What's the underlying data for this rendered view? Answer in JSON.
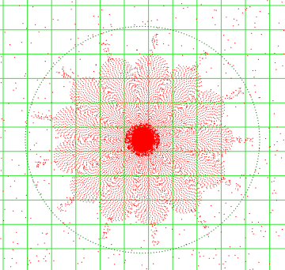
{
  "figure": {
    "background_color": "#ffffff",
    "grid_color": "#2ee82e",
    "point_color": "#ff0000",
    "boundary_dot_color": "#1a7a1a",
    "grid_columns": 11,
    "grid_rows": 10,
    "lobe_count": 13
  }
}
